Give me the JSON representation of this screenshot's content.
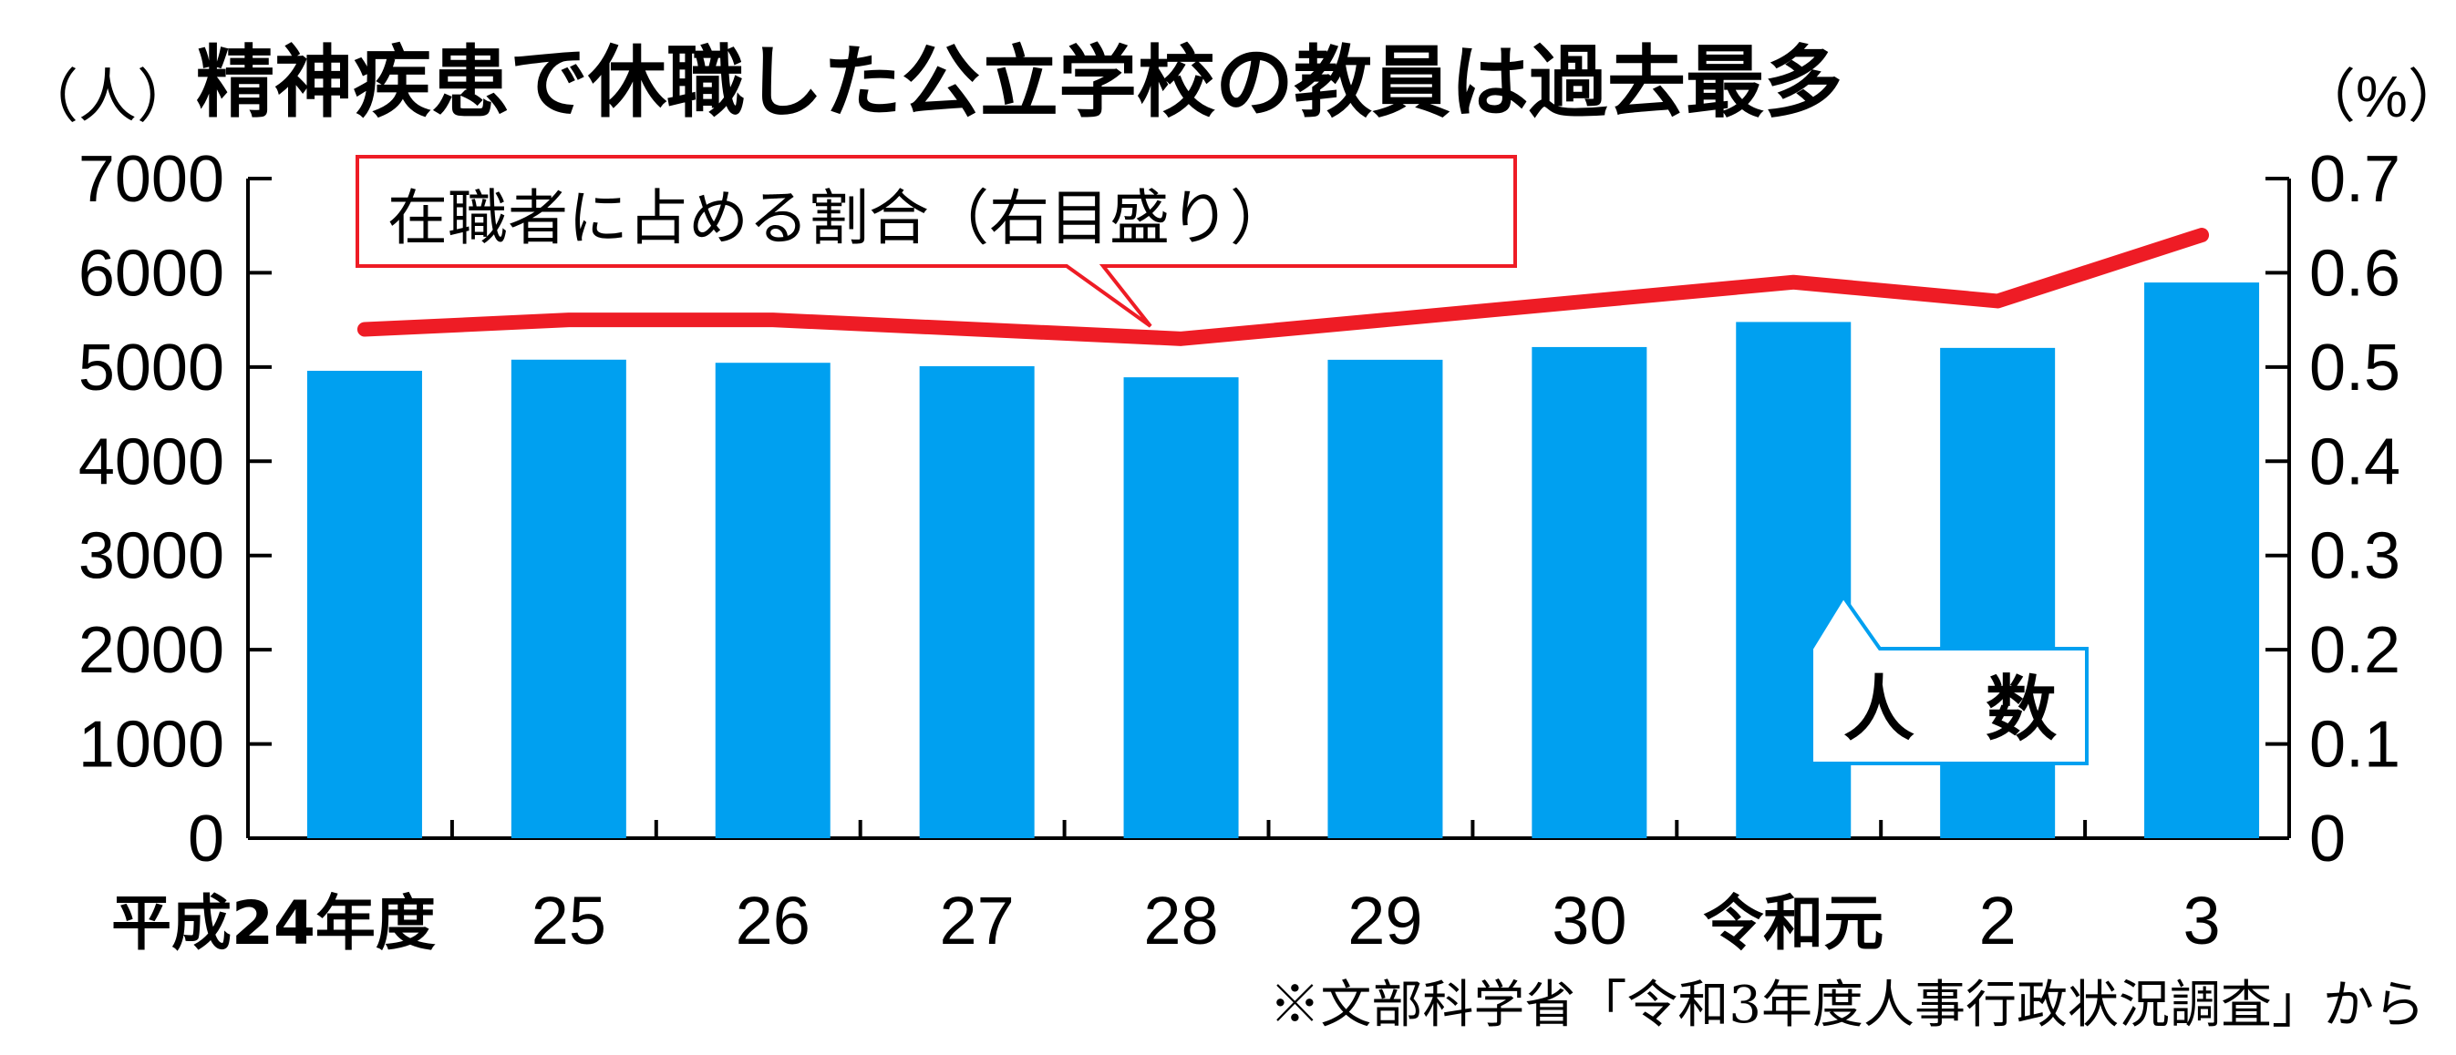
{
  "title": "精神疾患で休職した公立学校の教員は過去最多",
  "left_unit": "（人）",
  "right_unit": "（%）",
  "source": "※文部科学省「令和3年度人事行政状況調査」から",
  "callouts": {
    "line_label": "在職者に占める割合（右目盛り）",
    "bar_label": "人　数"
  },
  "colors": {
    "bar": "#00a0f0",
    "line": "#ee1c25"
  },
  "chart_data": {
    "type": "bar",
    "categories": [
      "平成24年度",
      "25",
      "26",
      "27",
      "28",
      "29",
      "30",
      "令和元",
      "2",
      "3"
    ],
    "series": [
      {
        "name": "人　数",
        "type": "bar",
        "axis": "left",
        "values": [
          4960,
          5078,
          5045,
          5009,
          4891,
          5077,
          5212,
          5478,
          5203,
          5897
        ]
      },
      {
        "name": "在職者に占める割合（右目盛り）",
        "type": "line",
        "axis": "right",
        "values": [
          0.54,
          0.55,
          0.55,
          0.54,
          0.53,
          0.55,
          0.57,
          0.59,
          0.57,
          0.64
        ]
      }
    ],
    "y_left": {
      "ticks": [
        "0",
        "1000",
        "2000",
        "3000",
        "4000",
        "5000",
        "6000",
        "7000"
      ],
      "ylim": [
        0,
        7000
      ]
    },
    "y_right": {
      "ticks": [
        "0",
        "0.1",
        "0.2",
        "0.3",
        "0.4",
        "0.5",
        "0.6",
        "0.7"
      ],
      "ylim": [
        0,
        0.7
      ]
    },
    "grid": false,
    "legend": "callouts"
  }
}
